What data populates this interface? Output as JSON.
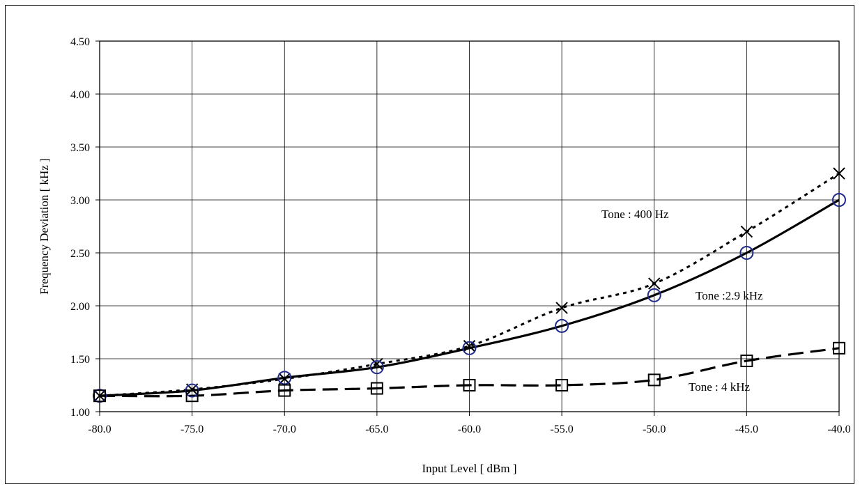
{
  "chart_data": {
    "type": "line",
    "xlabel": "Input Level [ dBm ]",
    "ylabel": "Frequency Deviation [ kHz ]",
    "xlim": [
      -80.0,
      -40.0
    ],
    "ylim": [
      1.0,
      4.5
    ],
    "x_ticks": [
      "-80.0",
      "-75.0",
      "-70.0",
      "-65.0",
      "-60.0",
      "-55.0",
      "-50.0",
      "-45.0",
      "-40.0"
    ],
    "y_ticks": [
      "1.00",
      "1.50",
      "2.00",
      "2.50",
      "3.00",
      "3.50",
      "4.00",
      "4.50"
    ],
    "grid": true,
    "x": [
      -80,
      -75,
      -70,
      -65,
      -60,
      -55,
      -50,
      -45,
      -40
    ],
    "series": [
      {
        "key": "tone400",
        "values": [
          1.15,
          1.21,
          1.31,
          1.45,
          1.62,
          1.98,
          2.21,
          2.7,
          3.25
        ],
        "marker": "x",
        "line": "dotted",
        "color": "#000000",
        "marker_color": "#000000"
      },
      {
        "key": "tone2900",
        "values": [
          1.15,
          1.2,
          1.32,
          1.42,
          1.6,
          1.81,
          2.1,
          2.5,
          3.0
        ],
        "marker": "circle",
        "line": "solid",
        "color": "#000000",
        "marker_color": "#1f2a8a"
      },
      {
        "key": "tone4000",
        "values": [
          1.15,
          1.15,
          1.2,
          1.22,
          1.25,
          1.25,
          1.3,
          1.48,
          1.6
        ],
        "marker": "square",
        "line": "dashed",
        "color": "#000000",
        "marker_color": "#000000"
      }
    ],
    "annotations": [
      {
        "key": "tone400",
        "text": "Tone : 400 Hz"
      },
      {
        "key": "tone2900",
        "text": "Tone :2.9 kHz"
      },
      {
        "key": "tone4000",
        "text": "Tone : 4 kHz"
      }
    ]
  }
}
